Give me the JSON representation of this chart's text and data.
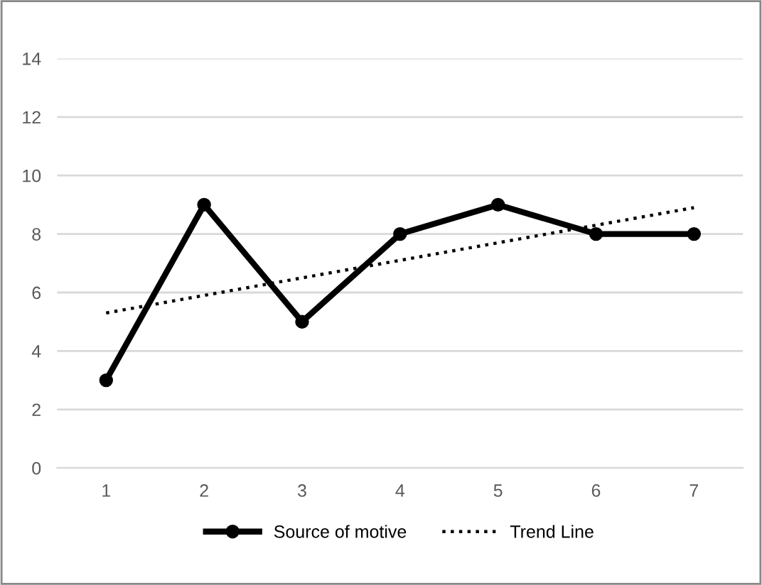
{
  "chart_data": {
    "type": "line",
    "x": [
      1,
      2,
      3,
      4,
      5,
      6,
      7
    ],
    "series": [
      {
        "name": "Source of motive",
        "color": "#000000",
        "values": [
          3,
          9,
          5,
          8,
          9,
          8,
          8
        ],
        "marker": "circle",
        "line_style": "solid"
      },
      {
        "name": "Trend Line",
        "color": "#000000",
        "x": [
          1,
          7
        ],
        "values": [
          5.3,
          8.9
        ],
        "marker": "none",
        "line_style": "dotted"
      }
    ],
    "xlim": [
      0.5,
      7.5
    ],
    "xticks": [
      1,
      2,
      3,
      4,
      5,
      6,
      7
    ],
    "ylim": [
      0,
      14
    ],
    "yticks": [
      0,
      2,
      4,
      6,
      8,
      10,
      12,
      14
    ],
    "grid": "y",
    "legend": "bottom"
  }
}
